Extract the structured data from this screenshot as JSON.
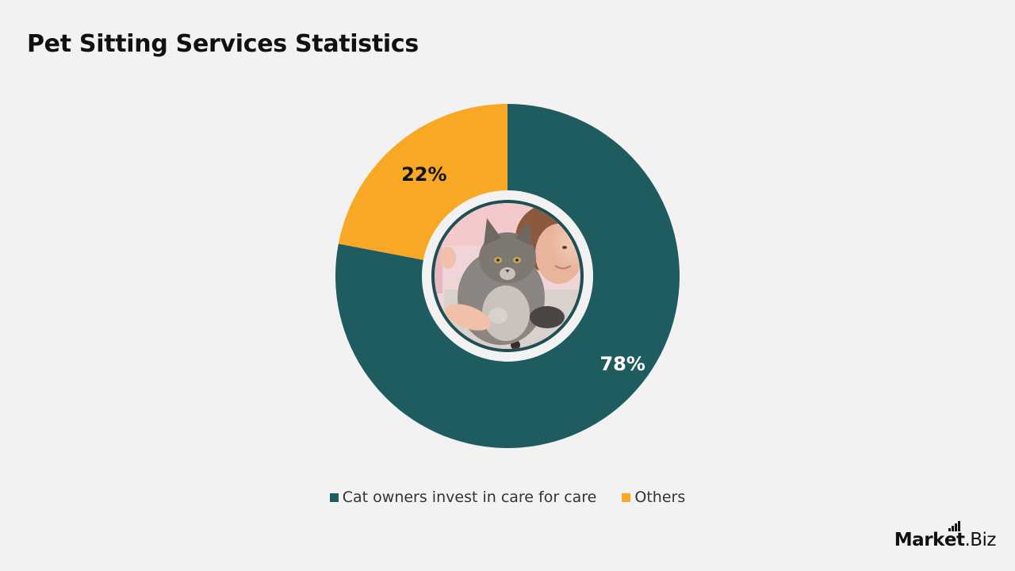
{
  "title": "Pet Sitting Services Statistics",
  "chart_data": {
    "type": "pie",
    "title": "Pet Sitting Services Statistics",
    "donut": true,
    "center_image": "cat-with-girl-photo",
    "labels": [
      "Cat owners invest in care for care",
      "Others"
    ],
    "values": [
      78,
      22
    ],
    "value_labels": [
      "78%",
      "22%"
    ],
    "colors": [
      "#1f5c60",
      "#f9a825"
    ],
    "legend_position": "bottom"
  },
  "logo": {
    "part1": "Mark",
    "part2": "et",
    "part3": ".Biz"
  }
}
